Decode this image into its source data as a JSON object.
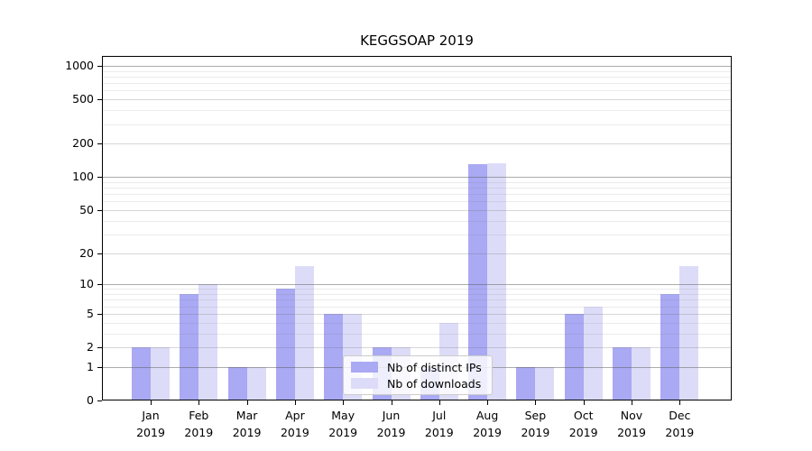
{
  "chart_data": {
    "type": "bar",
    "title": "KEGGSOAP 2019",
    "categories": [
      "Jan",
      "Feb",
      "Mar",
      "Apr",
      "May",
      "Jun",
      "Jul",
      "Aug",
      "Sep",
      "Oct",
      "Nov",
      "Dec"
    ],
    "category_year": "2019",
    "series": [
      {
        "name": "Nb of distinct IPs",
        "color": "#a9a9f4",
        "values": [
          2,
          8,
          1,
          9,
          5,
          2,
          1,
          130,
          1,
          5,
          2,
          8
        ]
      },
      {
        "name": "Nb of downloads",
        "color": "#dcdcf8",
        "values": [
          2,
          10,
          1,
          15,
          5,
          2,
          4,
          133,
          1,
          6,
          2,
          15
        ]
      }
    ],
    "y_scale": "log10(1+v)",
    "y_axis": {
      "tick_values": [
        0,
        1,
        2,
        5,
        10,
        20,
        50,
        100,
        200,
        500,
        1000
      ],
      "tick_labels": [
        "0",
        "1",
        "2",
        "5",
        "10",
        "20",
        "50",
        "100",
        "200",
        "500",
        "1000"
      ],
      "major_gridlines": [
        1,
        10,
        100,
        1000
      ],
      "labeled_minor_gridlines": [
        2,
        5,
        20,
        50,
        200,
        500
      ],
      "unlabeled_minor_gridlines": [
        3,
        4,
        6,
        7,
        8,
        9,
        30,
        40,
        60,
        70,
        80,
        90,
        300,
        400,
        600,
        700,
        800,
        900
      ],
      "range_top": 1000
    },
    "grid": true,
    "legend_position": "lower-center",
    "xlabel": "",
    "ylabel": ""
  },
  "colors": {
    "background": "#ffffff",
    "bar_distinct_ips": "#a9a9f4",
    "bar_downloads": "#dcdcf8",
    "spine": "#000000",
    "legend_border": "#cccccc"
  }
}
